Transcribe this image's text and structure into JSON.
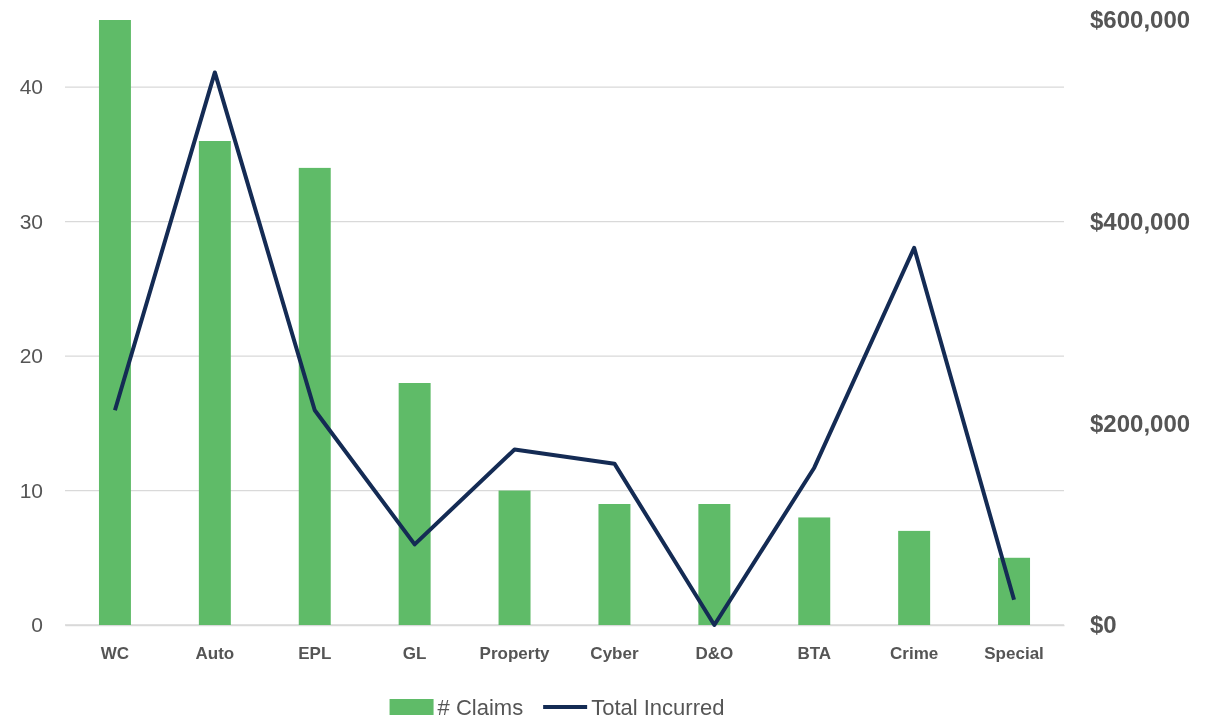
{
  "chart_data": {
    "type": "bar",
    "categories": [
      "WC",
      "Auto",
      "EPL",
      "GL",
      "Property",
      "Cyber",
      "D&O",
      "BTA",
      "Crime",
      "Special"
    ],
    "series": [
      {
        "name": "# Claims",
        "color": "#5fbb68",
        "values": [
          45,
          36,
          34,
          18,
          10,
          9,
          9,
          8,
          7,
          5
        ]
      },
      {
        "name": "Total Incurred",
        "type": "line",
        "axis": "y2",
        "color": "#142b54",
        "values": [
          213000,
          548000,
          213000,
          80000,
          174000,
          160000,
          0,
          156000,
          374000,
          25000
        ]
      }
    ],
    "ylim": [
      0,
      45
    ],
    "yticks": [
      0,
      10,
      20,
      30,
      40
    ],
    "y2lim": [
      0,
      600000
    ],
    "y2ticks": [
      {
        "value": 0,
        "label": "$0"
      },
      {
        "value": 200000,
        "label": "$200,000"
      },
      {
        "value": 400000,
        "label": "$400,000"
      },
      {
        "value": 600000,
        "label": "$600,000"
      }
    ],
    "grid": "y",
    "legend": "bottom",
    "marker": "none",
    "line_style": "solid"
  }
}
